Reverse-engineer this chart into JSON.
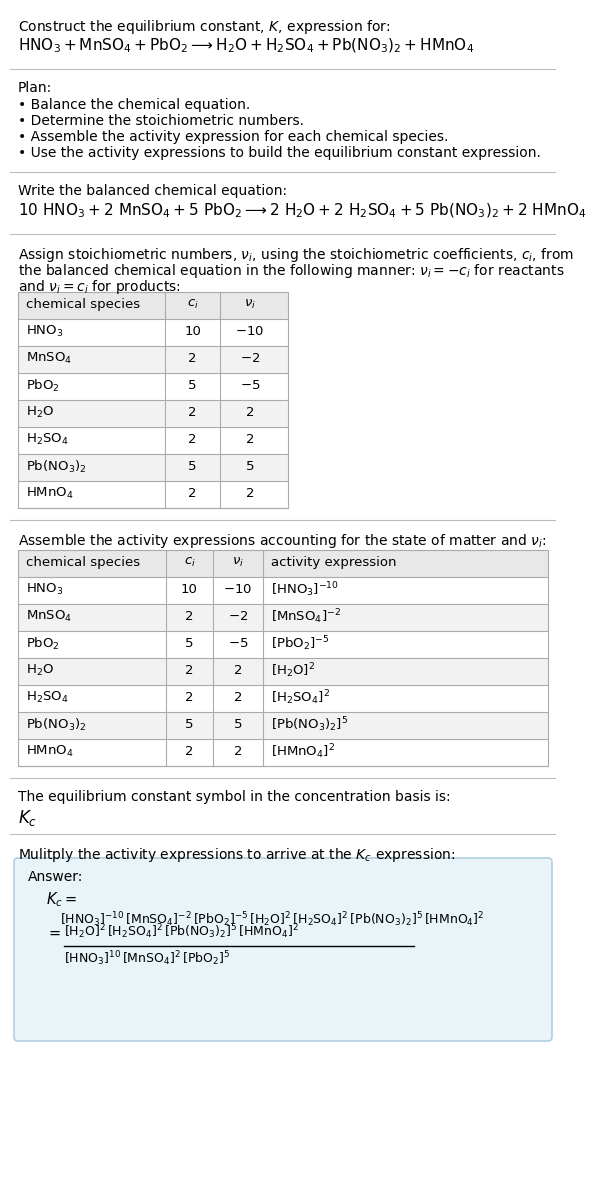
{
  "bg_color": "#ffffff",
  "answer_bg": "#e8f4f8",
  "answer_border": "#b0cfe0",
  "sep_color": "#bbbbbb",
  "table_header_bg": "#e8e8e8",
  "table_odd_bg": "#ffffff",
  "table_even_bg": "#f2f2f2",
  "table_border": "#aaaaaa",
  "title_line1": "Construct the equilibrium constant, $K$, expression for:",
  "title_line2": "$\\mathrm{HNO_3} + \\mathrm{MnSO_4} + \\mathrm{PbO_2} \\longrightarrow \\mathrm{H_2O} + \\mathrm{H_2SO_4} + \\mathrm{Pb(NO_3)_2} + \\mathrm{HMnO_4}$",
  "plan_header": "Plan:",
  "plan_items": [
    "\\bullet Balance the chemical equation.",
    "\\bullet Determine the stoichiometric numbers.",
    "\\bullet Assemble the activity expression for each chemical species.",
    "\\bullet Use the activity expressions to build the equilibrium constant expression."
  ],
  "balanced_header": "Write the balanced chemical equation:",
  "balanced_eq": "$10\\ \\mathrm{HNO_3} + 2\\ \\mathrm{MnSO_4} + 5\\ \\mathrm{PbO_2} \\longrightarrow 2\\ \\mathrm{H_2O} + 2\\ \\mathrm{H_2SO_4} + 5\\ \\mathrm{Pb(NO_3)_2} + 2\\ \\mathrm{HMnO_4}$",
  "stoich_intro": "Assign stoichiometric numbers, $\\nu_i$, using the stoichiometric coefficients, $c_i$, from\nthe balanced chemical equation in the following manner: $\\nu_i = -c_i$ for reactants\nand $\\nu_i = c_i$ for products:",
  "table1_col_headers": [
    "chemical species",
    "$c_i$",
    "$\\nu_i$"
  ],
  "table1_rows": [
    [
      "$\\mathrm{HNO_3}$",
      "10",
      "$-10$"
    ],
    [
      "$\\mathrm{MnSO_4}$",
      "2",
      "$-2$"
    ],
    [
      "$\\mathrm{PbO_2}$",
      "5",
      "$-5$"
    ],
    [
      "$\\mathrm{H_2O}$",
      "2",
      "2"
    ],
    [
      "$\\mathrm{H_2SO_4}$",
      "2",
      "2"
    ],
    [
      "$\\mathrm{Pb(NO_3)_2}$",
      "5",
      "5"
    ],
    [
      "$\\mathrm{HMnO_4}$",
      "2",
      "2"
    ]
  ],
  "activity_intro": "Assemble the activity expressions accounting for the state of matter and $\\nu_i$:",
  "table2_col_headers": [
    "chemical species",
    "$c_i$",
    "$\\nu_i$",
    "activity expression"
  ],
  "table2_rows": [
    [
      "$\\mathrm{HNO_3}$",
      "10",
      "$-10$",
      "$[\\mathrm{HNO_3}]^{-10}$"
    ],
    [
      "$\\mathrm{MnSO_4}$",
      "2",
      "$-2$",
      "$[\\mathrm{MnSO_4}]^{-2}$"
    ],
    [
      "$\\mathrm{PbO_2}$",
      "5",
      "$-5$",
      "$[\\mathrm{PbO_2}]^{-5}$"
    ],
    [
      "$\\mathrm{H_2O}$",
      "2",
      "2",
      "$[\\mathrm{H_2O}]^2$"
    ],
    [
      "$\\mathrm{H_2SO_4}$",
      "2",
      "2",
      "$[\\mathrm{H_2SO_4}]^2$"
    ],
    [
      "$\\mathrm{Pb(NO_3)_2}$",
      "5",
      "5",
      "$[\\mathrm{Pb(NO_3)_2}]^5$"
    ],
    [
      "$\\mathrm{HMnO_4}$",
      "2",
      "2",
      "$[\\mathrm{HMnO_4}]^2$"
    ]
  ],
  "kc_basis_intro": "The equilibrium constant symbol in the concentration basis is:",
  "kc_symbol": "$K_c$",
  "multiply_intro": "Mulitply the activity expressions to arrive at the $K_c$ expression:",
  "answer_label": "Answer:",
  "kc_line1": "$K_c = $",
  "kc_line2": "$[\\mathrm{HNO_3}]^{-10}\\,[\\mathrm{MnSO_4}]^{-2}\\,[\\mathrm{PbO_2}]^{-5}\\,[\\mathrm{H_2O}]^2\\,[\\mathrm{H_2SO_4}]^2\\,[\\mathrm{Pb(NO_3)_2}]^5\\,[\\mathrm{HMnO_4}]^2$",
  "kc_num": "$[\\mathrm{H_2O}]^2\\,[\\mathrm{H_2SO_4}]^2\\,[\\mathrm{Pb(NO_3)_2}]^5\\,[\\mathrm{HMnO_4}]^2$",
  "kc_den": "$[\\mathrm{HNO_3}]^{10}\\,[\\mathrm{MnSO_4}]^2\\,[\\mathrm{PbO_2}]^5$"
}
